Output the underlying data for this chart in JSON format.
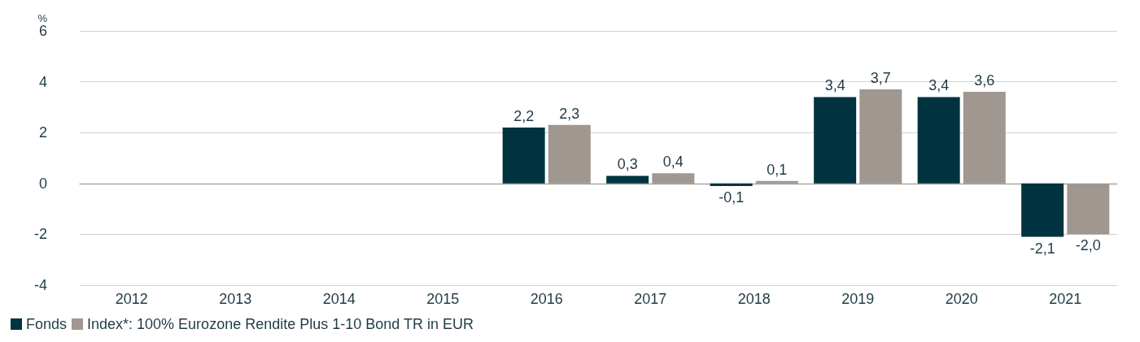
{
  "chart_data": {
    "type": "bar",
    "ylabel": "%",
    "categories": [
      "2012",
      "2013",
      "2014",
      "2015",
      "2016",
      "2017",
      "2018",
      "2019",
      "2020",
      "2021"
    ],
    "series": [
      {
        "name": "Fonds",
        "color": "#00333f",
        "values": [
          null,
          null,
          null,
          null,
          2.2,
          0.3,
          -0.1,
          3.4,
          3.4,
          -2.1
        ],
        "value_labels": [
          null,
          null,
          null,
          null,
          "2,2",
          "0,3",
          "-0,1",
          "3,4",
          "3,4",
          "-2,1"
        ]
      },
      {
        "name": "Index*: 100% Eurozone Rendite Plus 1-10 Bond TR in EUR",
        "color": "#a09890",
        "values": [
          null,
          null,
          null,
          null,
          2.3,
          0.4,
          0.1,
          3.7,
          3.6,
          -2.0
        ],
        "value_labels": [
          null,
          null,
          null,
          null,
          "2,3",
          "0,4",
          "0,1",
          "3,7",
          "3,6",
          "-2,0"
        ]
      }
    ],
    "ylim": [
      -4,
      6
    ],
    "yticks": [
      -4,
      -2,
      0,
      2,
      4,
      6
    ],
    "grid": "y",
    "legend": "bottom left"
  }
}
